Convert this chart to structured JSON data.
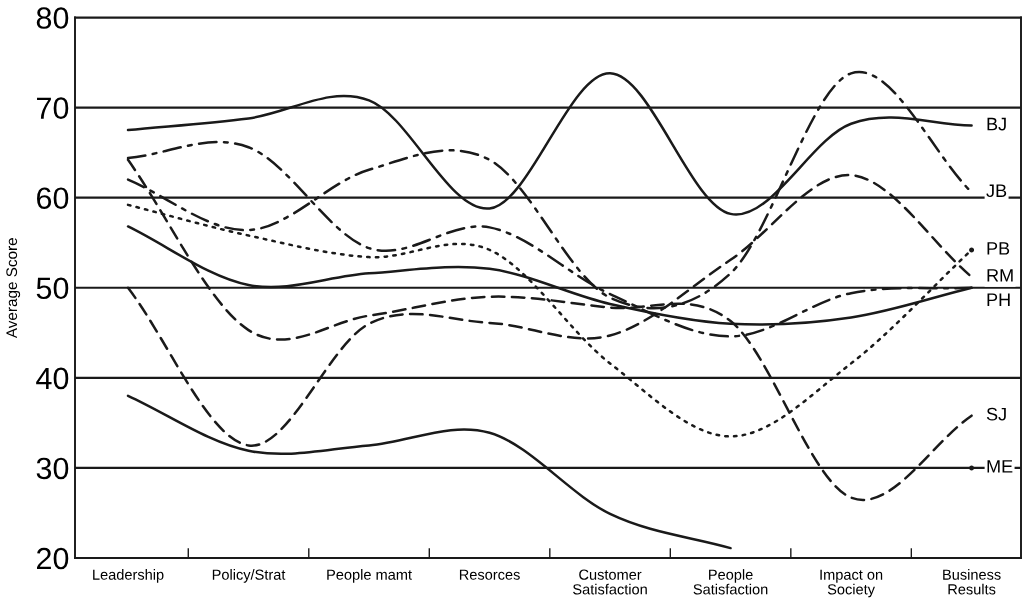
{
  "chart_data": {
    "type": "line",
    "ylabel": "Average Score",
    "categories": [
      "Leadership",
      "Policy/Strat",
      "People mamt",
      "Resorces",
      "Customer\nSatisfaction",
      "People\nSatisfaction",
      "Impact on\nSociety",
      "Business\nResults"
    ],
    "ylim": [
      20,
      80
    ],
    "yticks": [
      20,
      30,
      40,
      50,
      60,
      70,
      80
    ],
    "grid": "y",
    "legend": false,
    "marker": "none",
    "series": [
      {
        "name": "BJ",
        "color": "#1a1a1a",
        "line_style": "solid",
        "values": [
          67.5,
          68.8,
          70.8,
          58.8,
          73.8,
          58.2,
          68.2,
          68.0
        ]
      },
      {
        "name": "JB",
        "color": "#1a1a1a",
        "line_style": "dashdot",
        "values": [
          62.0,
          56.4,
          63.1,
          64.2,
          48.9,
          51.6,
          73.8,
          60.6
        ]
      },
      {
        "name": "PB",
        "color": "#1a1a1a",
        "line_style": "dotted",
        "values": [
          59.2,
          55.8,
          53.4,
          54.2,
          41.6,
          33.5,
          41.6,
          54.2
        ]
      },
      {
        "name": "RM",
        "color": "#1a1a1a",
        "line_style": "dashed",
        "values": [
          50.0,
          32.5,
          46.0,
          46.1,
          44.7,
          53.1,
          62.5,
          51.2
        ]
      },
      {
        "name": "PH",
        "color": "#1a1a1a",
        "line_style": "solid",
        "values": [
          56.8,
          50.3,
          51.6,
          52.1,
          48.2,
          46.0,
          46.7,
          50.0
        ]
      },
      {
        "color": "#1a1a1a",
        "line_style": "dashdot",
        "values": [
          64.4,
          65.6,
          54.4,
          56.7,
          49.3,
          44.6,
          49.4,
          50.0
        ]
      },
      {
        "name": "SJ",
        "color": "#1a1a1a",
        "line_style": "dashed",
        "values": [
          64.2,
          45.3,
          46.9,
          49.0,
          47.8,
          46.3,
          26.7,
          35.8
        ]
      },
      {
        "name": "ME",
        "color": "#1a1a1a",
        "line_style": "solid",
        "values": [
          38.0,
          31.9,
          32.5,
          33.9,
          24.9,
          21.1,
          null,
          30.0
        ]
      }
    ]
  }
}
